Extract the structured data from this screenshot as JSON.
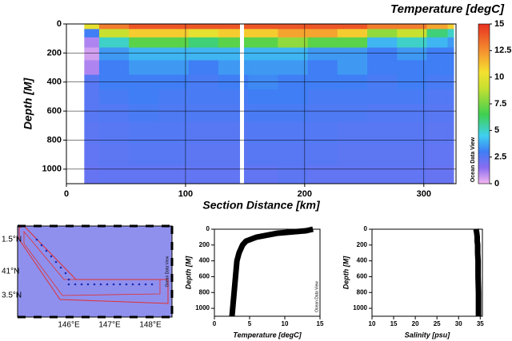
{
  "chart_data": [
    {
      "type": "section",
      "title": "Temperature [degC]",
      "xlabel": "Section Distance [km]",
      "ylabel": "Depth [M]",
      "watermark": "Ocean Data View",
      "x": [
        15,
        40,
        65,
        90,
        115,
        140,
        165,
        190,
        215,
        240,
        265,
        290,
        315,
        325
      ],
      "depths": [
        10,
        60,
        125,
        200,
        300,
        400,
        500,
        600,
        750,
        900,
        1050
      ],
      "values": [
        [
          10,
          13,
          14,
          14,
          14,
          14,
          14,
          14,
          14,
          14,
          13,
          13,
          12,
          11
        ],
        [
          3,
          9,
          11,
          11,
          10,
          11,
          11,
          12,
          12,
          11,
          8,
          9,
          6,
          5
        ],
        [
          1,
          5,
          7,
          7,
          6,
          7,
          7,
          8,
          7,
          7,
          4,
          5,
          4,
          3.5
        ],
        [
          0.5,
          3.5,
          4,
          4,
          4,
          4,
          4,
          4,
          3.5,
          3.5,
          3,
          3.5,
          3,
          3
        ],
        [
          1,
          3,
          3.5,
          3.5,
          3,
          3.5,
          3.5,
          3.5,
          3,
          3.5,
          3,
          3,
          3,
          3
        ],
        [
          2.5,
          3,
          3,
          3,
          2.8,
          3,
          3.2,
          3,
          3,
          3,
          2.8,
          3,
          2.8,
          2.8
        ],
        [
          2.5,
          2.8,
          3,
          2.8,
          2.8,
          2.8,
          3,
          3,
          2.8,
          2.8,
          2.8,
          2.8,
          2.6,
          2.6
        ],
        [
          2.5,
          2.6,
          2.8,
          2.7,
          2.7,
          2.7,
          2.8,
          2.8,
          2.7,
          2.7,
          2.6,
          2.6,
          2.5,
          2.5
        ],
        [
          2.4,
          2.5,
          2.6,
          2.6,
          2.5,
          2.5,
          2.6,
          2.6,
          2.6,
          2.5,
          2.5,
          2.5,
          2.4,
          2.4
        ],
        [
          2.3,
          2.4,
          2.5,
          2.5,
          2.4,
          2.4,
          2.5,
          2.5,
          2.5,
          2.4,
          2.4,
          2.4,
          2.3,
          2.3
        ],
        [
          2.2,
          2.3,
          2.3,
          2.3,
          2.3,
          2.3,
          2.3,
          2.4,
          2.3,
          2.3,
          2.3,
          2.3,
          2.2,
          2.2
        ]
      ],
      "xlim": [
        0,
        327
      ],
      "ylim": [
        1100,
        0
      ],
      "xticks": [
        0,
        100,
        200,
        300
      ],
      "yticks": [
        0,
        200,
        400,
        600,
        800,
        1000
      ],
      "clim": [
        0,
        15
      ],
      "cticks": [
        0,
        2.5,
        5,
        7.5,
        10,
        12.5,
        15
      ],
      "colormap": [
        {
          "value": 0,
          "color": "#f5b8f0"
        },
        {
          "value": 1.5,
          "color": "#8a6cf0"
        },
        {
          "value": 3,
          "color": "#3f7ef5"
        },
        {
          "value": 4.5,
          "color": "#3fd0f0"
        },
        {
          "value": 6.5,
          "color": "#3fd050"
        },
        {
          "value": 9,
          "color": "#c8e030"
        },
        {
          "value": 10.5,
          "color": "#f5e030"
        },
        {
          "value": 12.5,
          "color": "#f59030"
        },
        {
          "value": 15,
          "color": "#e83020"
        }
      ],
      "grid": true
    },
    {
      "type": "map",
      "lat_labels": [
        "1.5°N",
        "41°N",
        "3.5°N"
      ],
      "lon_labels": [
        "146°E",
        "147°E",
        "148°E"
      ],
      "watermark": "Ocean Data View"
    },
    {
      "type": "profile",
      "xlabel": "Temperature [degC]",
      "ylabel": "Depth [M]",
      "watermark": "Ocean Data View",
      "values": [
        14,
        13,
        9,
        6,
        4.5,
        4,
        3.5,
        3.2,
        3,
        2.8,
        2.6,
        2.5
      ],
      "depths": [
        0,
        20,
        50,
        100,
        150,
        200,
        300,
        400,
        600,
        800,
        1000,
        1100
      ],
      "xlim": [
        0,
        15
      ],
      "ylim": [
        1100,
        0
      ],
      "xticks": [
        0,
        5,
        10,
        15
      ],
      "yticks": [
        0,
        200,
        400,
        600,
        800,
        1000
      ],
      "color": "#000000"
    },
    {
      "type": "profile",
      "xlabel": "Salinity [psu]",
      "ylabel": "Depth [M]",
      "watermark": "Ocean Data View",
      "values": [
        34,
        34.1,
        34.2,
        34.3,
        34.3,
        34.4,
        34.4,
        34.5,
        34.5,
        34.6,
        34.6,
        34.6
      ],
      "depths": [
        0,
        20,
        50,
        100,
        150,
        200,
        300,
        400,
        600,
        800,
        1000,
        1100
      ],
      "xlim": [
        10,
        35.5
      ],
      "ylim": [
        1100,
        0
      ],
      "xticks": [
        10,
        15,
        20,
        25,
        30,
        35
      ],
      "yticks": [
        0,
        200,
        400,
        600,
        800,
        1000
      ],
      "color": "#000000"
    }
  ]
}
